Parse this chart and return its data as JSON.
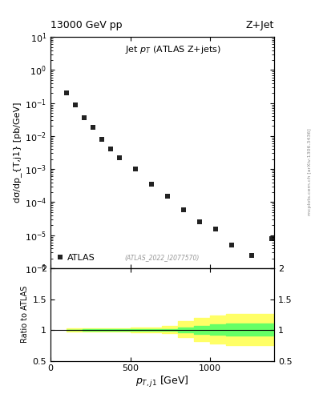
{
  "title_left": "13000 GeV pp",
  "title_right": "Z+Jet",
  "plot_title": "Jet p_{T} (ATLAS Z+jets)",
  "xlabel": "p_{T,j1} [GeV]",
  "ylabel_main": "dσ/dp_{T,j1} [pb/GeV]",
  "ylabel_ratio": "Ratio to ATLAS",
  "watermark": "(ATLAS_2022_I2077570)",
  "arxiv_label": "mcplots.cern.ch [arXiv:1306.3436]",
  "data_x": [
    100,
    158,
    213,
    268,
    323,
    378,
    433,
    533,
    633,
    733,
    833,
    933,
    1033,
    1133,
    1258,
    1383
  ],
  "data_y": [
    0.2,
    0.09,
    0.035,
    0.018,
    0.008,
    0.004,
    0.0022,
    0.001,
    0.00035,
    0.00015,
    6e-05,
    2.5e-05,
    1.5e-05,
    5e-06,
    2.5e-06,
    8e-06
  ],
  "legend_label": "ATLAS",
  "marker_color": "#222222",
  "ratio_x": [
    100,
    200,
    300,
    400,
    500,
    600,
    700,
    800,
    900,
    1000,
    1100,
    1200,
    1300,
    1400
  ],
  "ratio_yellow_lo": [
    0.98,
    0.975,
    0.973,
    0.97,
    0.965,
    0.96,
    0.95,
    0.88,
    0.82,
    0.78,
    0.76,
    0.76,
    0.76,
    0.76
  ],
  "ratio_yellow_hi": [
    1.02,
    1.025,
    1.027,
    1.03,
    1.035,
    1.04,
    1.06,
    1.14,
    1.2,
    1.24,
    1.26,
    1.26,
    1.26,
    1.26
  ],
  "ratio_green_lo": [
    0.995,
    0.993,
    0.991,
    0.989,
    0.987,
    0.985,
    0.982,
    0.96,
    0.94,
    0.92,
    0.91,
    0.91,
    0.91,
    0.91
  ],
  "ratio_green_hi": [
    1.005,
    1.007,
    1.009,
    1.011,
    1.013,
    1.015,
    1.018,
    1.04,
    1.07,
    1.09,
    1.1,
    1.1,
    1.1,
    1.1
  ],
  "xlim": [
    0,
    1400
  ],
  "ylim_main": [
    1e-06,
    10
  ],
  "ylim_ratio": [
    0.5,
    2.0
  ],
  "bg_color": "#ffffff",
  "yellow_color": "#ffff66",
  "green_color": "#66ff66",
  "marker_size": 5
}
